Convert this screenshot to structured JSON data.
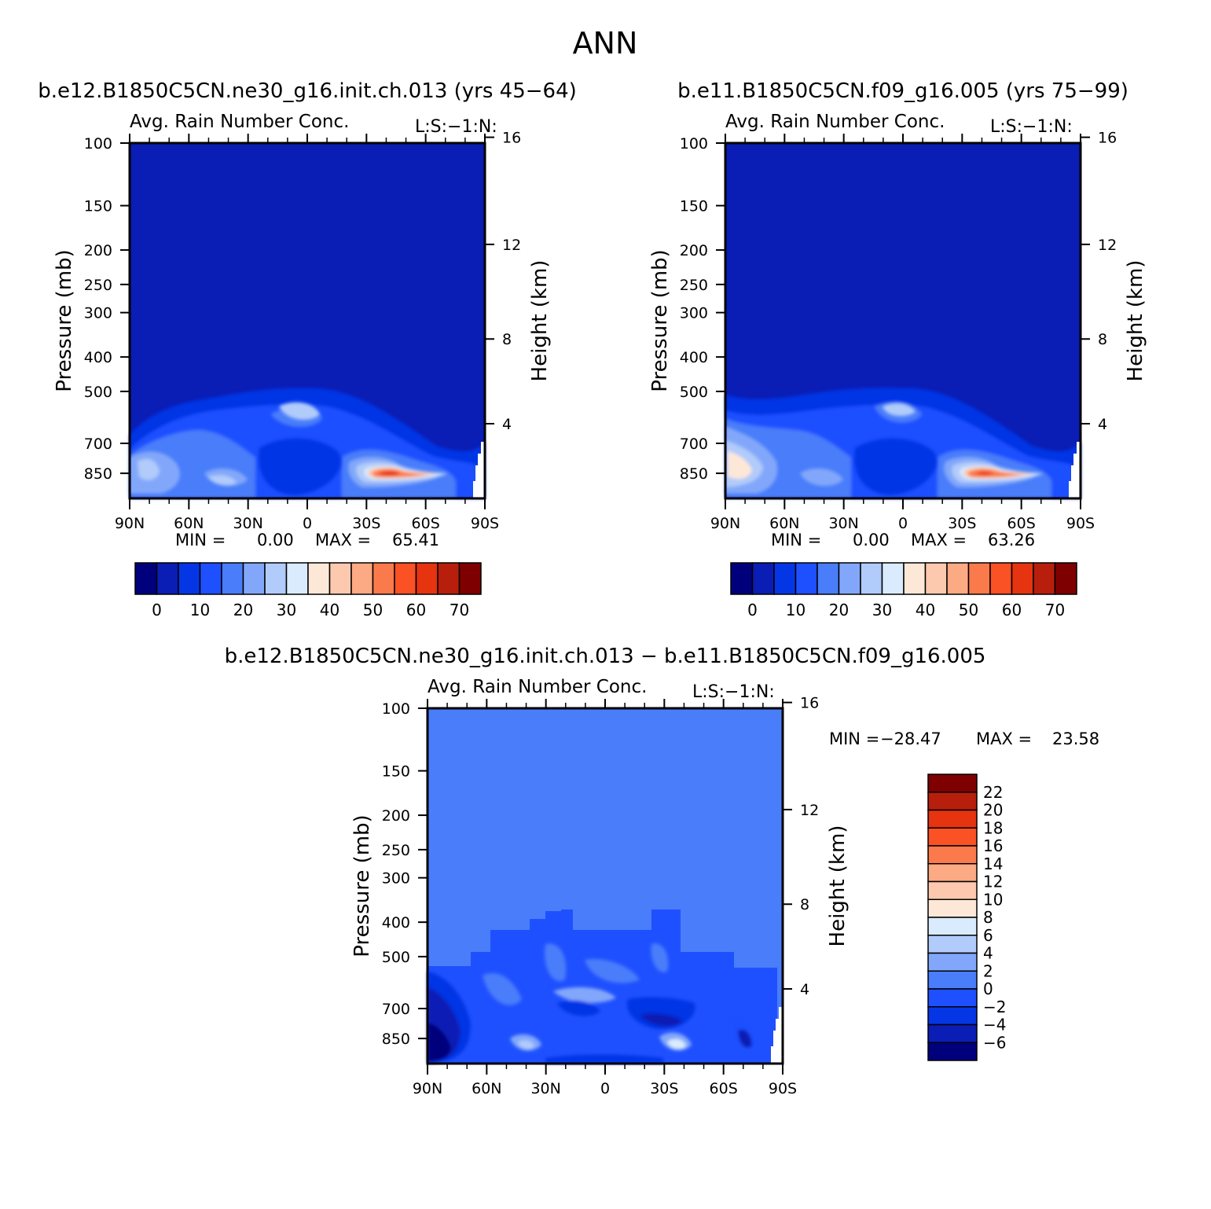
{
  "page_title": "ANN",
  "chart_data": [
    {
      "type": "heatmap",
      "title": "b.e12.B1850C5CN.ne30_g16.init.ch.013 (yrs 45−64)",
      "subtitle": "Avg. Rain Number Conc.",
      "units_label": "L:S:−1:N:",
      "xlabel": "",
      "ylabel": "Pressure (mb)",
      "ylabel_right": "Height (km)",
      "x_ticks": [
        "90N",
        "60N",
        "30N",
        "0",
        "30S",
        "60S",
        "90S"
      ],
      "y_ticks": [
        100,
        150,
        200,
        250,
        300,
        400,
        500,
        700,
        850
      ],
      "y_ticks_right": [
        16,
        12,
        8,
        4
      ],
      "ylim": [
        100,
        1000
      ],
      "y_scale": "log",
      "min_label": "MIN =",
      "min_value": "0.00",
      "max_label": "MAX =",
      "max_value": "65.41",
      "colorbar_orientation": "horizontal",
      "colorbar_labels": [
        "0",
        "10",
        "20",
        "30",
        "40",
        "50",
        "60",
        "70"
      ],
      "colorbar_colors": [
        "#00007d",
        "#0a1db4",
        "#0536e6",
        "#1f50ff",
        "#4a7dfa",
        "#82a7fa",
        "#b1cbfa",
        "#d9ebfc",
        "#fde8d8",
        "#fcc9af",
        "#fbaa84",
        "#fb7a4b",
        "#fa5125",
        "#e5340f",
        "#b81e0c",
        "#7f0000"
      ]
    },
    {
      "type": "heatmap",
      "title": "b.e11.B1850C5CN.f09_g16.005 (yrs 75−99)",
      "subtitle": "Avg. Rain Number Conc.",
      "units_label": "L:S:−1:N:",
      "xlabel": "",
      "ylabel": "Pressure (mb)",
      "ylabel_right": "Height (km)",
      "x_ticks": [
        "90N",
        "60N",
        "30N",
        "0",
        "30S",
        "60S",
        "90S"
      ],
      "y_ticks": [
        100,
        150,
        200,
        250,
        300,
        400,
        500,
        700,
        850
      ],
      "y_ticks_right": [
        16,
        12,
        8,
        4
      ],
      "ylim": [
        100,
        1000
      ],
      "y_scale": "log",
      "min_label": "MIN =",
      "min_value": "0.00",
      "max_label": "MAX =",
      "max_value": "63.26",
      "colorbar_orientation": "horizontal",
      "colorbar_labels": [
        "0",
        "10",
        "20",
        "30",
        "40",
        "50",
        "60",
        "70"
      ],
      "colorbar_colors": [
        "#00007d",
        "#0a1db4",
        "#0536e6",
        "#1f50ff",
        "#4a7dfa",
        "#82a7fa",
        "#b1cbfa",
        "#d9ebfc",
        "#fde8d8",
        "#fcc9af",
        "#fbaa84",
        "#fb7a4b",
        "#fa5125",
        "#e5340f",
        "#b81e0c",
        "#7f0000"
      ]
    },
    {
      "type": "heatmap",
      "title": "b.e12.B1850C5CN.ne30_g16.init.ch.013 − b.e11.B1850C5CN.f09_g16.005",
      "subtitle": "Avg. Rain Number Conc.",
      "units_label": "L:S:−1:N:",
      "xlabel": "",
      "ylabel": "Pressure (mb)",
      "ylabel_right": "Height (km)",
      "x_ticks": [
        "90N",
        "60N",
        "30N",
        "0",
        "30S",
        "60S",
        "90S"
      ],
      "y_ticks": [
        100,
        150,
        200,
        250,
        300,
        400,
        500,
        700,
        850
      ],
      "y_ticks_right": [
        16,
        12,
        8,
        4
      ],
      "ylim": [
        100,
        1000
      ],
      "y_scale": "log",
      "min_label": "MIN =",
      "min_value": "−28.47",
      "max_label": "MAX =",
      "max_value": "23.58",
      "colorbar_orientation": "vertical",
      "colorbar_labels": [
        "22",
        "20",
        "18",
        "16",
        "14",
        "12",
        "10",
        "8",
        "6",
        "4",
        "2",
        "0",
        "−2",
        "−4",
        "−6"
      ],
      "colorbar_colors": [
        "#7f0000",
        "#b81e0c",
        "#e5340f",
        "#fa5125",
        "#fb7a4b",
        "#fbaa84",
        "#fcc9af",
        "#fde8d8",
        "#d9ebfc",
        "#b1cbfa",
        "#82a7fa",
        "#4a7dfa",
        "#1f50ff",
        "#0536e6",
        "#0a1db4",
        "#00007d"
      ]
    }
  ]
}
